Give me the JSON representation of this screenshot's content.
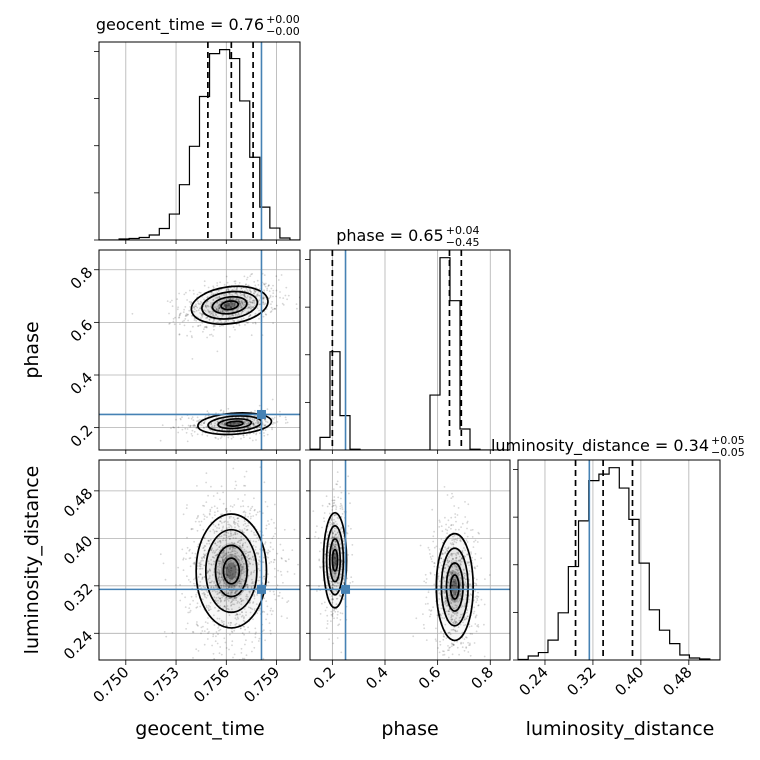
{
  "chart_data": {
    "type": "corner",
    "parameters": [
      "geocent_time",
      "phase",
      "luminosity_distance"
    ],
    "axis_labels": [
      "geocent_time",
      "phase",
      "luminosity_distance"
    ],
    "ranges": {
      "geocent_time": [
        0.7484,
        0.7604
      ],
      "phase": [
        0.115,
        0.875
      ],
      "luminosity_distance": [
        0.195,
        0.532
      ]
    },
    "ticks": {
      "geocent_time": [
        {
          "value": 0.75,
          "label": "0.750"
        },
        {
          "value": 0.753,
          "label": "0.753"
        },
        {
          "value": 0.756,
          "label": "0.756"
        },
        {
          "value": 0.759,
          "label": "0.759"
        }
      ],
      "phase": [
        {
          "value": 0.2,
          "label": "0.2"
        },
        {
          "value": 0.4,
          "label": "0.4"
        },
        {
          "value": 0.6,
          "label": "0.6"
        },
        {
          "value": 0.8,
          "label": "0.8"
        }
      ],
      "luminosity_distance": [
        {
          "value": 0.24,
          "label": "0.24"
        },
        {
          "value": 0.32,
          "label": "0.32"
        },
        {
          "value": 0.4,
          "label": "0.40"
        },
        {
          "value": 0.48,
          "label": "0.48"
        }
      ]
    },
    "titles": [
      {
        "param": "geocent_time",
        "text": "geocent_time = 0.76",
        "sup": "+0.00",
        "sub": "−0.00"
      },
      {
        "param": "phase",
        "text": "phase = 0.65",
        "sup": "+0.04",
        "sub": "−0.45"
      },
      {
        "param": "luminosity_distance",
        "text": "luminosity_distance = 0.34",
        "sup": "+0.05",
        "sub": "−0.05"
      }
    ],
    "truths": {
      "geocent_time": 0.7581,
      "phase": 0.25,
      "luminosity_distance": 0.314
    },
    "quantiles": {
      "geocent_time": [
        0.7549,
        0.7563,
        0.7576
      ],
      "phase": [
        0.2,
        0.645,
        0.69
      ],
      "luminosity_distance": [
        0.291,
        0.337,
        0.386
      ]
    },
    "histograms": {
      "geocent_time": {
        "edges": [
          0.7484,
          0.749,
          0.7496,
          0.7502,
          0.7508,
          0.7514,
          0.752,
          0.7526,
          0.7532,
          0.7538,
          0.7544,
          0.755,
          0.7556,
          0.7562,
          0.7568,
          0.7574,
          0.758,
          0.7586,
          0.7592,
          0.7598,
          0.7604
        ],
        "counts": [
          0,
          0,
          2,
          3,
          5,
          10,
          23,
          52,
          111,
          188,
          288,
          374,
          382,
          364,
          279,
          166,
          66,
          24,
          4,
          0
        ]
      },
      "phase": {
        "edges": [
          0.115,
          0.153,
          0.191,
          0.229,
          0.267,
          0.305,
          0.343,
          0.381,
          0.419,
          0.457,
          0.495,
          0.533,
          0.571,
          0.609,
          0.647,
          0.685,
          0.723,
          0.761,
          0.799,
          0.837,
          0.875
        ],
        "counts": [
          2,
          35,
          272,
          95,
          2,
          0,
          0,
          0,
          0,
          0,
          0,
          0,
          152,
          532,
          413,
          58,
          2,
          0,
          0,
          0
        ]
      },
      "luminosity_distance": {
        "edges": [
          0.195,
          0.212,
          0.229,
          0.245,
          0.262,
          0.279,
          0.296,
          0.313,
          0.33,
          0.347,
          0.364,
          0.38,
          0.397,
          0.414,
          0.431,
          0.448,
          0.465,
          0.481,
          0.498,
          0.515,
          0.532
        ],
        "counts": [
          1,
          8,
          15,
          40,
          95,
          188,
          280,
          361,
          374,
          387,
          346,
          283,
          195,
          101,
          60,
          33,
          10,
          4,
          2,
          0
        ]
      }
    },
    "density_2d": [
      {
        "x": "geocent_time",
        "y": "phase",
        "modes": [
          {
            "center": [
              0.7562,
              0.665
            ],
            "sigma": [
              0.00115,
              0.035
            ],
            "weight": 0.62,
            "tilt": 0.3
          },
          {
            "center": [
              0.7565,
              0.215
            ],
            "sigma": [
              0.0011,
              0.02
            ],
            "weight": 0.38,
            "tilt": 0.15
          }
        ]
      },
      {
        "x": "geocent_time",
        "y": "luminosity_distance",
        "modes": [
          {
            "center": [
              0.7563,
              0.345
            ],
            "sigma": [
              0.00105,
              0.048
            ],
            "weight": 1.0,
            "tilt": 0.0
          }
        ]
      },
      {
        "x": "phase",
        "y": "luminosity_distance",
        "modes": [
          {
            "center": [
              0.21,
              0.363
            ],
            "sigma": [
              0.022,
              0.04
            ],
            "weight": 0.38,
            "tilt": 0.0
          },
          {
            "center": [
              0.665,
              0.318
            ],
            "sigma": [
              0.035,
              0.045
            ],
            "weight": 0.62,
            "tilt": 0.0
          }
        ]
      }
    ],
    "grid": true,
    "colors": {
      "truth": "#4682b4",
      "contours": "#000000",
      "scatter": "#000000",
      "density": "#000000"
    }
  }
}
